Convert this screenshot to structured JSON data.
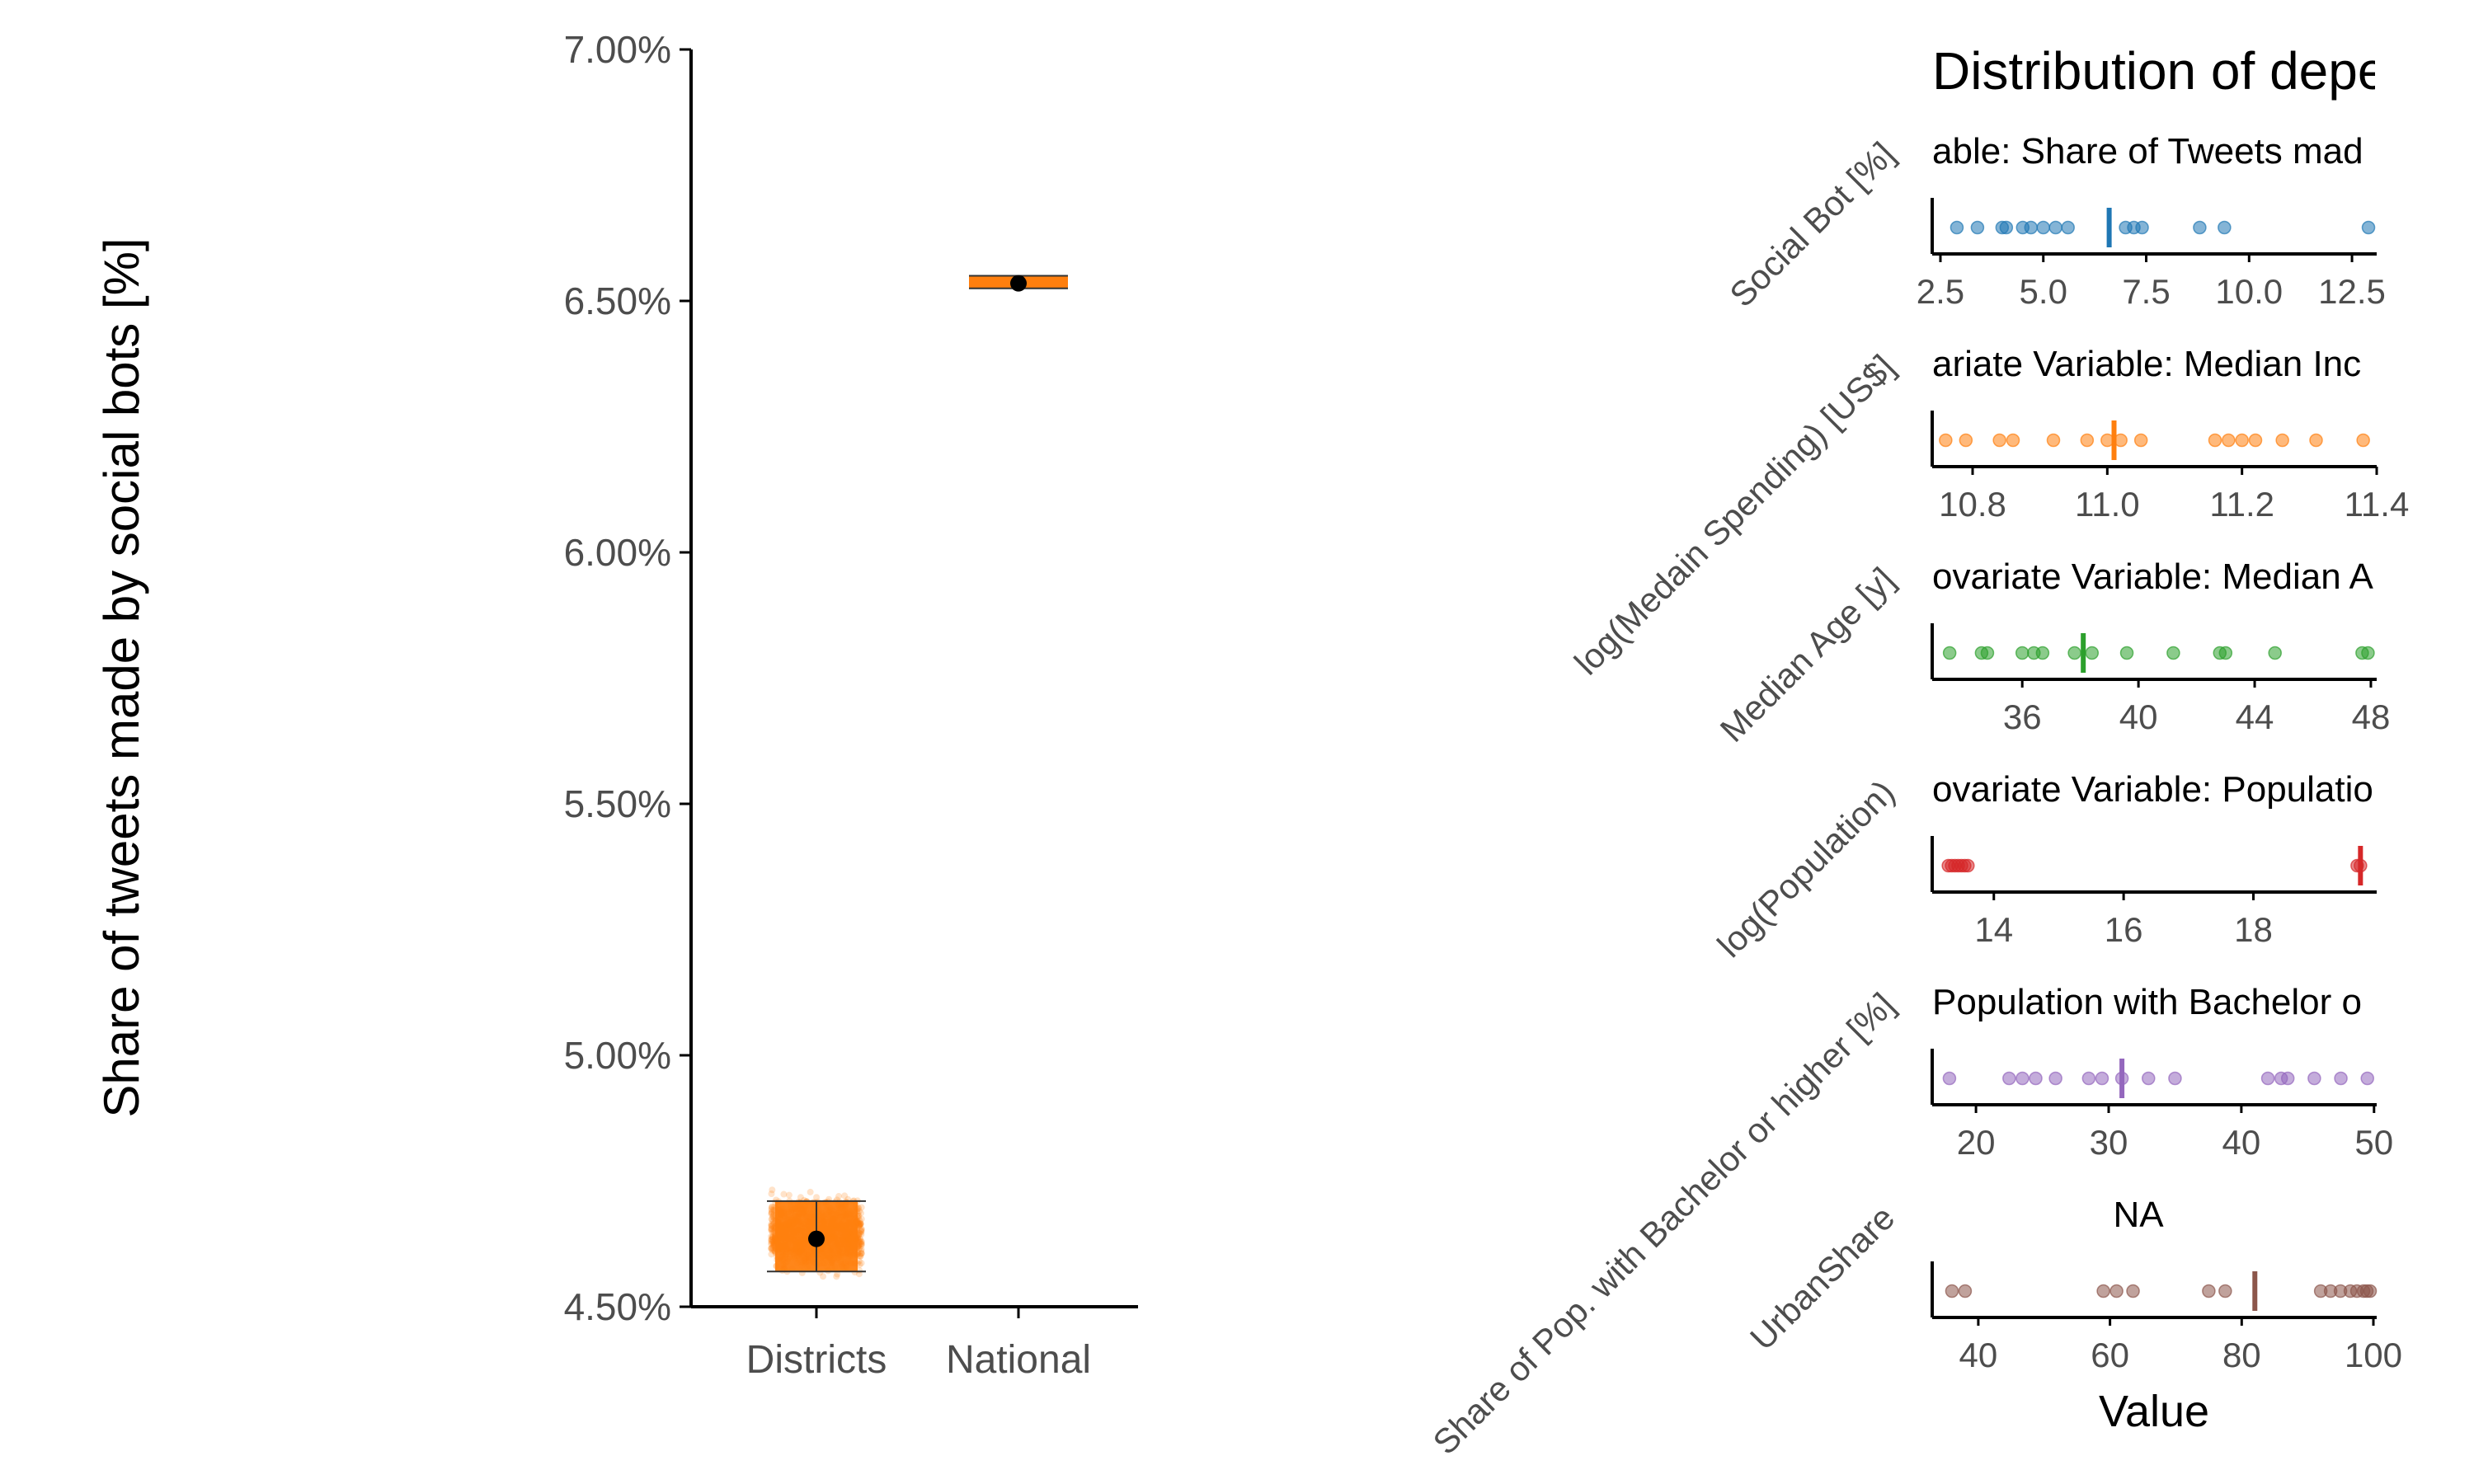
{
  "colors": {
    "axis": "#000000",
    "tick_text": "#4d4d4d",
    "orange": "#ff7f0e",
    "blue": "#1f77b4",
    "green": "#2ca02c",
    "red": "#d62728",
    "purple": "#9467bd",
    "brown": "#8c564b",
    "black": "#000000"
  },
  "chart_data": [
    {
      "type": "box",
      "ylabel": "Share of tweets made by social bots [%]",
      "ylim": [
        4.5,
        7.0
      ],
      "y_ticks": [
        "4.50%",
        "5.00%",
        "5.50%",
        "6.00%",
        "6.50%",
        "7.00%"
      ],
      "y_tick_values": [
        4.5,
        5.0,
        5.5,
        6.0,
        6.5,
        7.0
      ],
      "categories": [
        "Districts",
        "National"
      ],
      "series": [
        {
          "category": "Districts",
          "mean": 4.635,
          "lower": 4.57,
          "upper": 4.71,
          "jitter_min": 4.55,
          "jitter_max": 4.74,
          "color": "orange"
        },
        {
          "category": "National",
          "mean": 6.535,
          "lower": 6.525,
          "upper": 6.55,
          "color": "orange"
        }
      ],
      "grid": false,
      "legend": "none"
    },
    {
      "type": "scatter",
      "title": "Distribution of depend",
      "xlabel": "Value",
      "grid": false,
      "legend": "none",
      "panels": [
        {
          "row_label": "Social Bot [%]",
          "panel_title": "able: Share of Tweets mad",
          "color": "blue",
          "xlim": [
            2.3,
            13.1
          ],
          "x_ticks": [
            "2.5",
            "5.0",
            "7.5",
            "10.0",
            "12.5"
          ],
          "x_tick_values": [
            2.5,
            5.0,
            7.5,
            10.0,
            12.5
          ],
          "points": [
            2.9,
            3.4,
            4.0,
            4.1,
            4.5,
            4.7,
            5.0,
            5.3,
            5.6,
            7.0,
            7.2,
            7.4,
            8.8,
            9.4,
            12.9
          ],
          "mean": 6.6
        },
        {
          "row_label": "log(Medain Spending) [US$]",
          "panel_title": "ariate Variable: Median Inc",
          "color": "orange",
          "xlim": [
            10.74,
            11.4
          ],
          "x_ticks": [
            "10.8",
            "11.0",
            "11.2",
            "11.4"
          ],
          "x_tick_values": [
            10.8,
            11.0,
            11.2,
            11.4
          ],
          "points": [
            10.76,
            10.79,
            10.84,
            10.86,
            10.92,
            10.97,
            11.0,
            11.02,
            11.05,
            11.16,
            11.18,
            11.2,
            11.22,
            11.26,
            11.31,
            11.38
          ],
          "mean": 11.01
        },
        {
          "row_label": "Median Age [y]",
          "panel_title": "ovariate Variable: Median A",
          "color": "green",
          "xlim": [
            32.9,
            48.2
          ],
          "x_ticks": [
            "36",
            "40",
            "44",
            "48"
          ],
          "x_tick_values": [
            36,
            40,
            44,
            48
          ],
          "points": [
            33.5,
            34.6,
            34.8,
            36.0,
            36.4,
            36.7,
            37.8,
            38.4,
            39.6,
            41.2,
            42.8,
            43.0,
            44.7,
            47.7,
            47.9
          ],
          "mean": 38.1
        },
        {
          "row_label": "log(Population)",
          "panel_title": "ovariate Variable: Populatio",
          "color": "red",
          "xlim": [
            13.05,
            19.9
          ],
          "x_ticks": [
            "14",
            "16",
            "18"
          ],
          "x_tick_values": [
            14,
            16,
            18
          ],
          "points": [
            13.3,
            13.35,
            13.4,
            13.45,
            13.5,
            13.55,
            13.6,
            19.6,
            19.65
          ],
          "mean": 19.65
        },
        {
          "row_label": "Share of Pop. with Bachelor or higher [%]",
          "panel_title": "Population with Bachelor o",
          "color": "purple",
          "xlim": [
            16.7,
            50.2
          ],
          "x_ticks": [
            "20",
            "30",
            "40",
            "50"
          ],
          "x_tick_values": [
            20,
            30,
            40,
            50
          ],
          "points": [
            18.0,
            22.5,
            23.5,
            24.5,
            26.0,
            28.5,
            29.5,
            31.0,
            33.0,
            35.0,
            42.0,
            43.0,
            43.5,
            45.5,
            47.5,
            49.5
          ],
          "mean": 31.0
        },
        {
          "row_label": "UrbanShare",
          "panel_title": "NA",
          "color": "brown",
          "xlim": [
            33.0,
            100.5
          ],
          "x_ticks": [
            "40",
            "60",
            "80",
            "100"
          ],
          "x_tick_values": [
            40,
            60,
            80,
            100
          ],
          "points": [
            36.0,
            38.0,
            59.0,
            61.0,
            63.5,
            75.0,
            77.5,
            92.0,
            93.5,
            95.0,
            96.5,
            97.5,
            98.5,
            99.0,
            99.5
          ],
          "mean": 82.0
        }
      ]
    }
  ]
}
